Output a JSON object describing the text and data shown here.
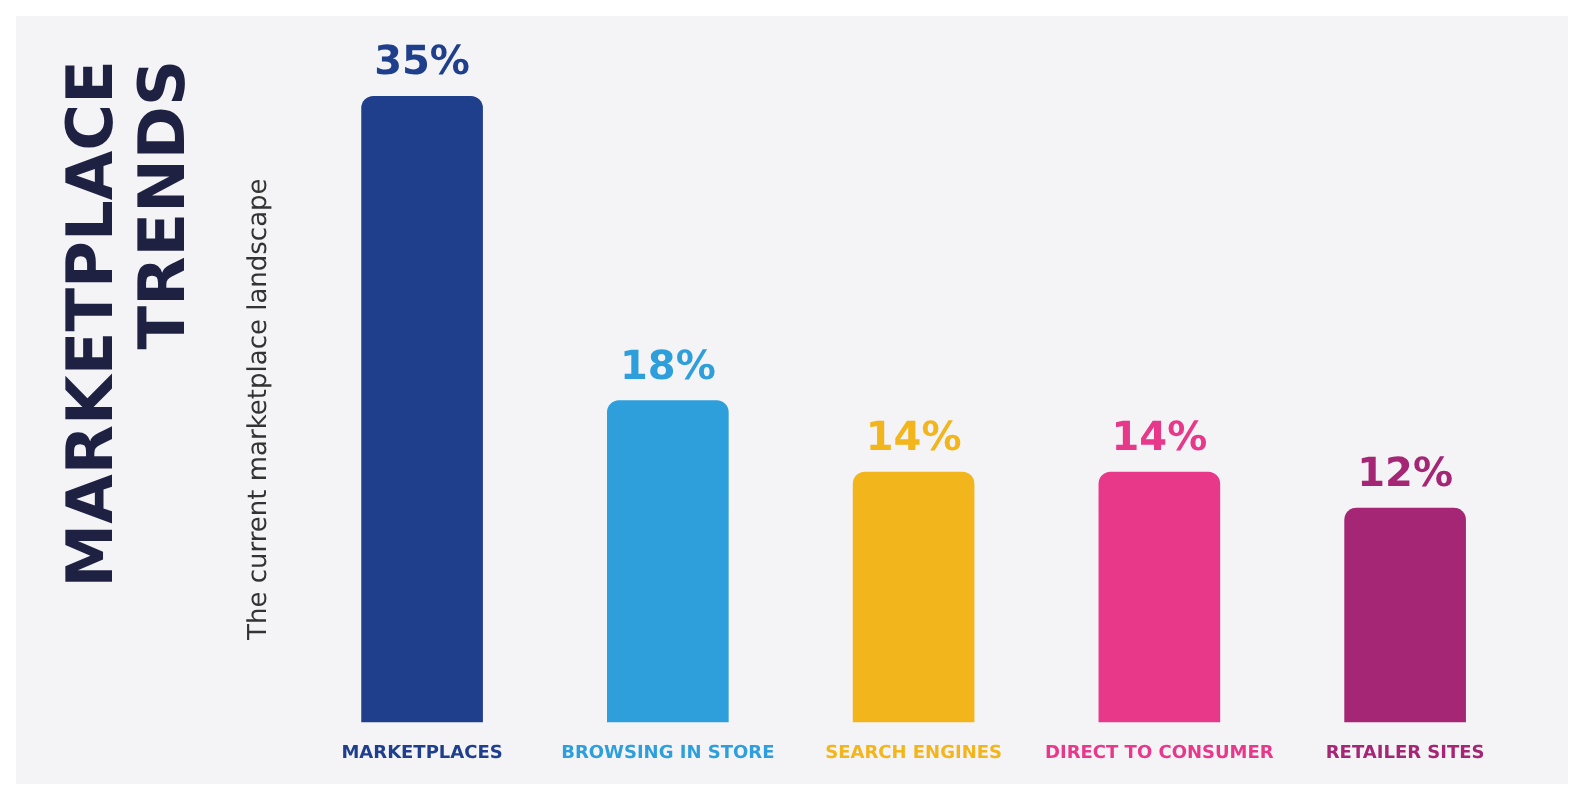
{
  "chart_data": {
    "type": "bar",
    "title": "MARKETPLACE TRENDS",
    "ylabel": "The current marketplace landscape",
    "categories": [
      "MARKETPLACES",
      "BROWSING IN STORE",
      "SEARCH ENGINES",
      "DIRECT TO CONSUMER",
      "RETAILER SITES"
    ],
    "values": [
      35,
      18,
      14,
      14,
      12
    ],
    "colors": [
      "#1f3f8c",
      "#2f9fdc",
      "#f2b51c",
      "#e8388a",
      "#a52674"
    ],
    "value_labels": [
      "35%",
      "18%",
      "14%",
      "14%",
      "12%"
    ],
    "grid": false,
    "legend": false,
    "tick_labels": "x"
  }
}
